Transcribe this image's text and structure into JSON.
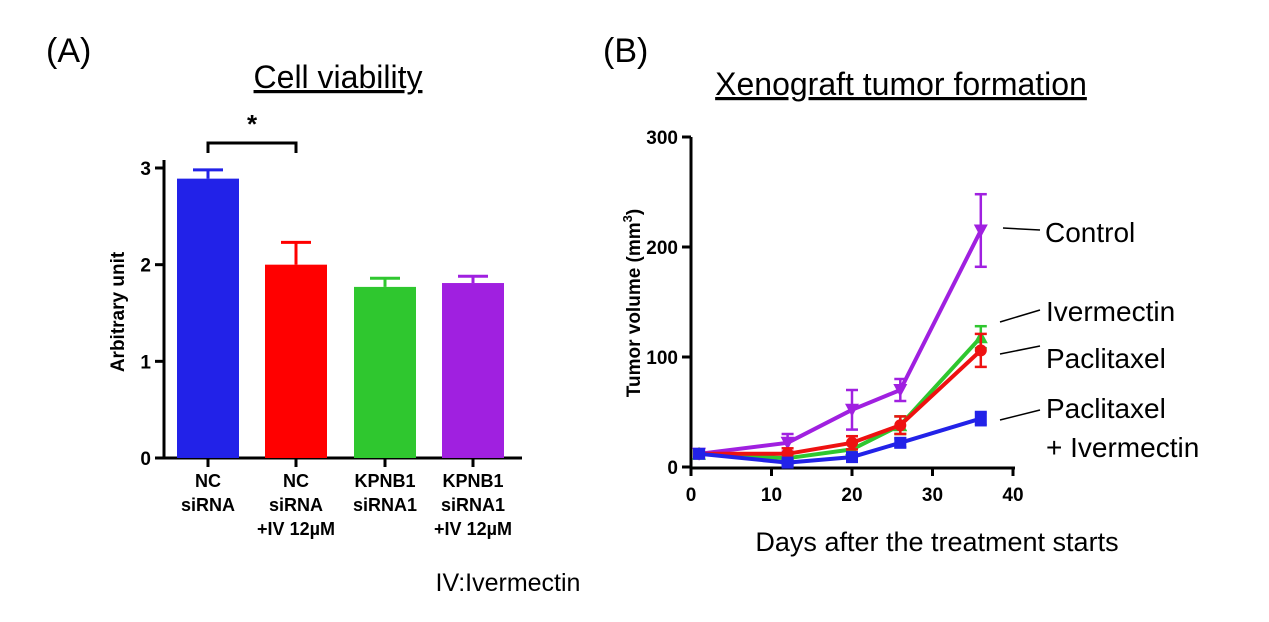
{
  "chart_data": [
    {
      "panel": "(A)",
      "type": "bar",
      "title": "Cell viability",
      "ylabel": "Arbitrary unit",
      "xlabel": "",
      "ylim": [
        0,
        3
      ],
      "yticks": [
        0,
        1,
        2,
        3
      ],
      "categories": [
        [
          "NC",
          "siRNA"
        ],
        [
          "NC",
          "siRNA",
          "+IV 12µM"
        ],
        [
          "KPNB1",
          "siRNA1"
        ],
        [
          "KPNB1",
          "siRNA1",
          "+IV 12µM"
        ]
      ],
      "values": [
        2.89,
        2.0,
        1.77,
        1.81
      ],
      "errors": [
        0.09,
        0.23,
        0.09,
        0.07
      ],
      "colors": [
        "#2222e8",
        "#ff0000",
        "#2fc72f",
        "#a020e0"
      ],
      "significance": {
        "between": [
          0,
          1
        ],
        "label": "*"
      },
      "footnote": "IV:Ivermectin"
    },
    {
      "panel": "(B)",
      "type": "line",
      "title": "Xenograft tumor formation",
      "xlabel": "Days after the treatment starts",
      "ylabel": "Tumor volume (mm",
      "ylabel_sup": "3",
      "ylabel_close": ")",
      "xlim": [
        0,
        40
      ],
      "ylim": [
        0,
        300
      ],
      "xticks": [
        0,
        10,
        20,
        30,
        40
      ],
      "yticks": [
        0,
        100,
        200,
        300
      ],
      "x": [
        1,
        12,
        20,
        26,
        36
      ],
      "series": [
        {
          "name": "Control",
          "label_lines": [
            "Control"
          ],
          "color": "#a020e0",
          "marker": "triangle-down",
          "values": [
            12,
            22,
            52,
            70,
            215
          ],
          "errors": [
            3,
            8,
            18,
            10,
            33
          ]
        },
        {
          "name": "Ivermectin",
          "label_lines": [
            "Ivermectin"
          ],
          "color": "#2fc72f",
          "marker": "triangle-up",
          "values": [
            12,
            8,
            16,
            38,
            118
          ],
          "errors": [
            3,
            3,
            5,
            8,
            10
          ]
        },
        {
          "name": "Paclitaxel",
          "label_lines": [
            "Paclitaxel"
          ],
          "color": "#ee1111",
          "marker": "circle",
          "values": [
            12,
            12,
            22,
            38,
            106
          ],
          "errors": [
            3,
            5,
            6,
            8,
            15
          ]
        },
        {
          "name": "Paclitaxel + Ivermectin",
          "label_lines": [
            "Paclitaxel",
            "+ Ivermectin"
          ],
          "color": "#2222e8",
          "marker": "square",
          "values": [
            12,
            4,
            9,
            22,
            44
          ],
          "errors": [
            3,
            2,
            3,
            4,
            6
          ]
        }
      ]
    }
  ]
}
